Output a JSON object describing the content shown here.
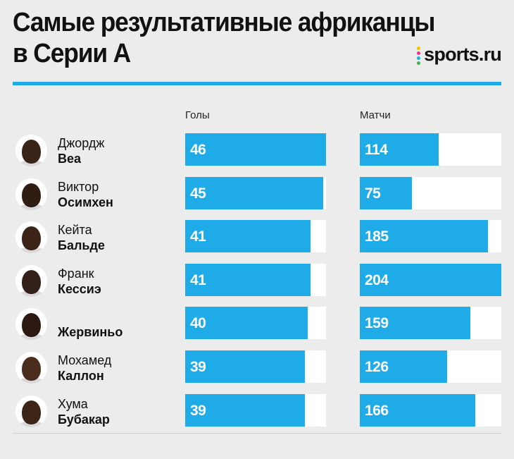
{
  "header": {
    "title_line1": "Самые результативные африканцы",
    "title_line2": "в Серии А",
    "brand": "sports.ru"
  },
  "colors": {
    "accent": "#1fabe8",
    "track": "#ffffff",
    "background": "#ececec",
    "brand_dots": [
      "#f5c400",
      "#e8328c",
      "#1fabe8",
      "#41b648"
    ]
  },
  "chart_data": {
    "type": "bar",
    "title": "Самые результативные африканцы в Серии А",
    "columns": [
      {
        "key": "goals",
        "label": "Голы",
        "max": 46
      },
      {
        "key": "matches",
        "label": "Матчи",
        "max": 204
      }
    ],
    "players": [
      {
        "first": "Джордж",
        "last": "Веа",
        "goals": 46,
        "matches": 114,
        "skin": "#3a2418"
      },
      {
        "first": "Виктор",
        "last": "Осимхен",
        "goals": 45,
        "matches": 75,
        "skin": "#2f1d14"
      },
      {
        "first": "Кейта",
        "last": "Бальде",
        "goals": 41,
        "matches": 185,
        "skin": "#3b2417"
      },
      {
        "first": "Франк",
        "last": "Кессиэ",
        "goals": 41,
        "matches": 204,
        "skin": "#33201a"
      },
      {
        "first": "",
        "last": "Жервиньо",
        "goals": 40,
        "matches": 159,
        "skin": "#2c1a12"
      },
      {
        "first": "Мохамед",
        "last": "Каллон",
        "goals": 39,
        "matches": 126,
        "skin": "#4a2c1c"
      },
      {
        "first": "Хума",
        "last": "Бубакар",
        "goals": 39,
        "matches": 166,
        "skin": "#3d2619"
      }
    ]
  }
}
